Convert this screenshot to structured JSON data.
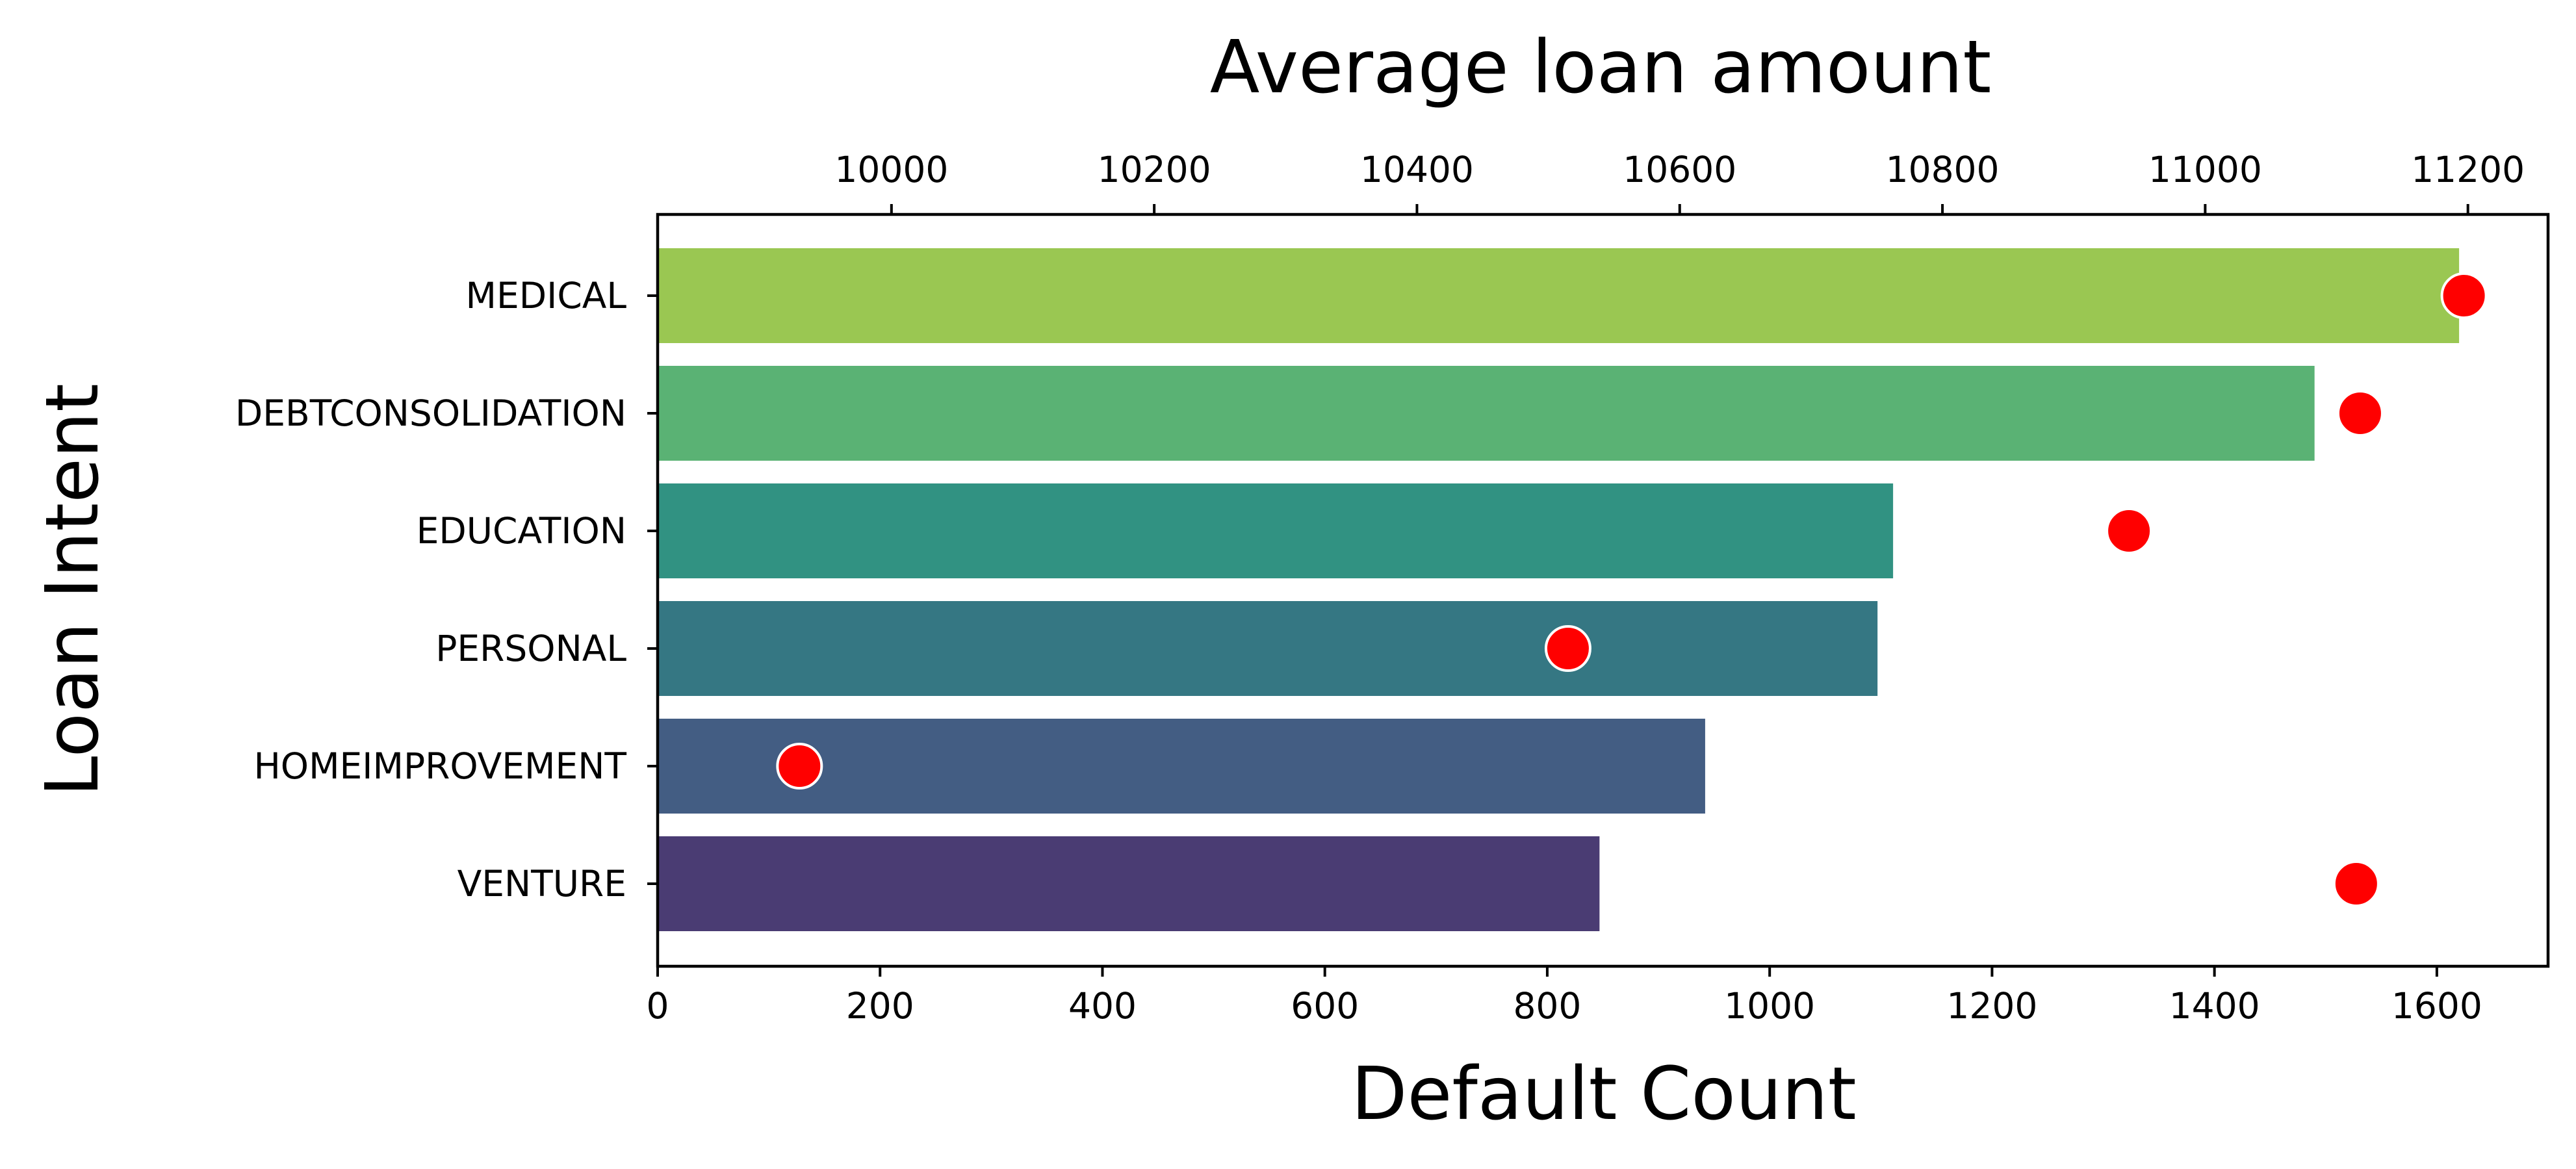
{
  "chart_data": {
    "type": "bar",
    "orientation": "horizontal",
    "ylabel": "Loan Intent",
    "xlabel": "Default Count",
    "x2label": "Average loan amount",
    "categories": [
      "MEDICAL",
      "DEBTCONSOLIDATION",
      "EDUCATION",
      "PERSONAL",
      "HOMEIMPROVEMENT",
      "VENTURE"
    ],
    "series": [
      {
        "axis": "bottom",
        "values": [
          1620,
          1490,
          1111,
          1097,
          942,
          847
        ],
        "colors": [
          "#9ac752",
          "#5ab274",
          "#319282",
          "#357783",
          "#435d83",
          "#4a3c73"
        ]
      },
      {
        "axis": "top",
        "values": [
          11197,
          11118,
          10942,
          10515,
          9930,
          11115
        ],
        "color": "#ff0000",
        "marker": "circle"
      }
    ],
    "xlim": [
      0,
      1700
    ],
    "x2lim": [
      9822,
      11261
    ],
    "xticks": [
      "0",
      "200",
      "400",
      "600",
      "800",
      "1000",
      "1200",
      "1400",
      "1600"
    ],
    "x2ticks": [
      "10000",
      "10200",
      "10400",
      "10600",
      "10800",
      "11000",
      "11200"
    ],
    "grid": false,
    "legend": "none"
  }
}
